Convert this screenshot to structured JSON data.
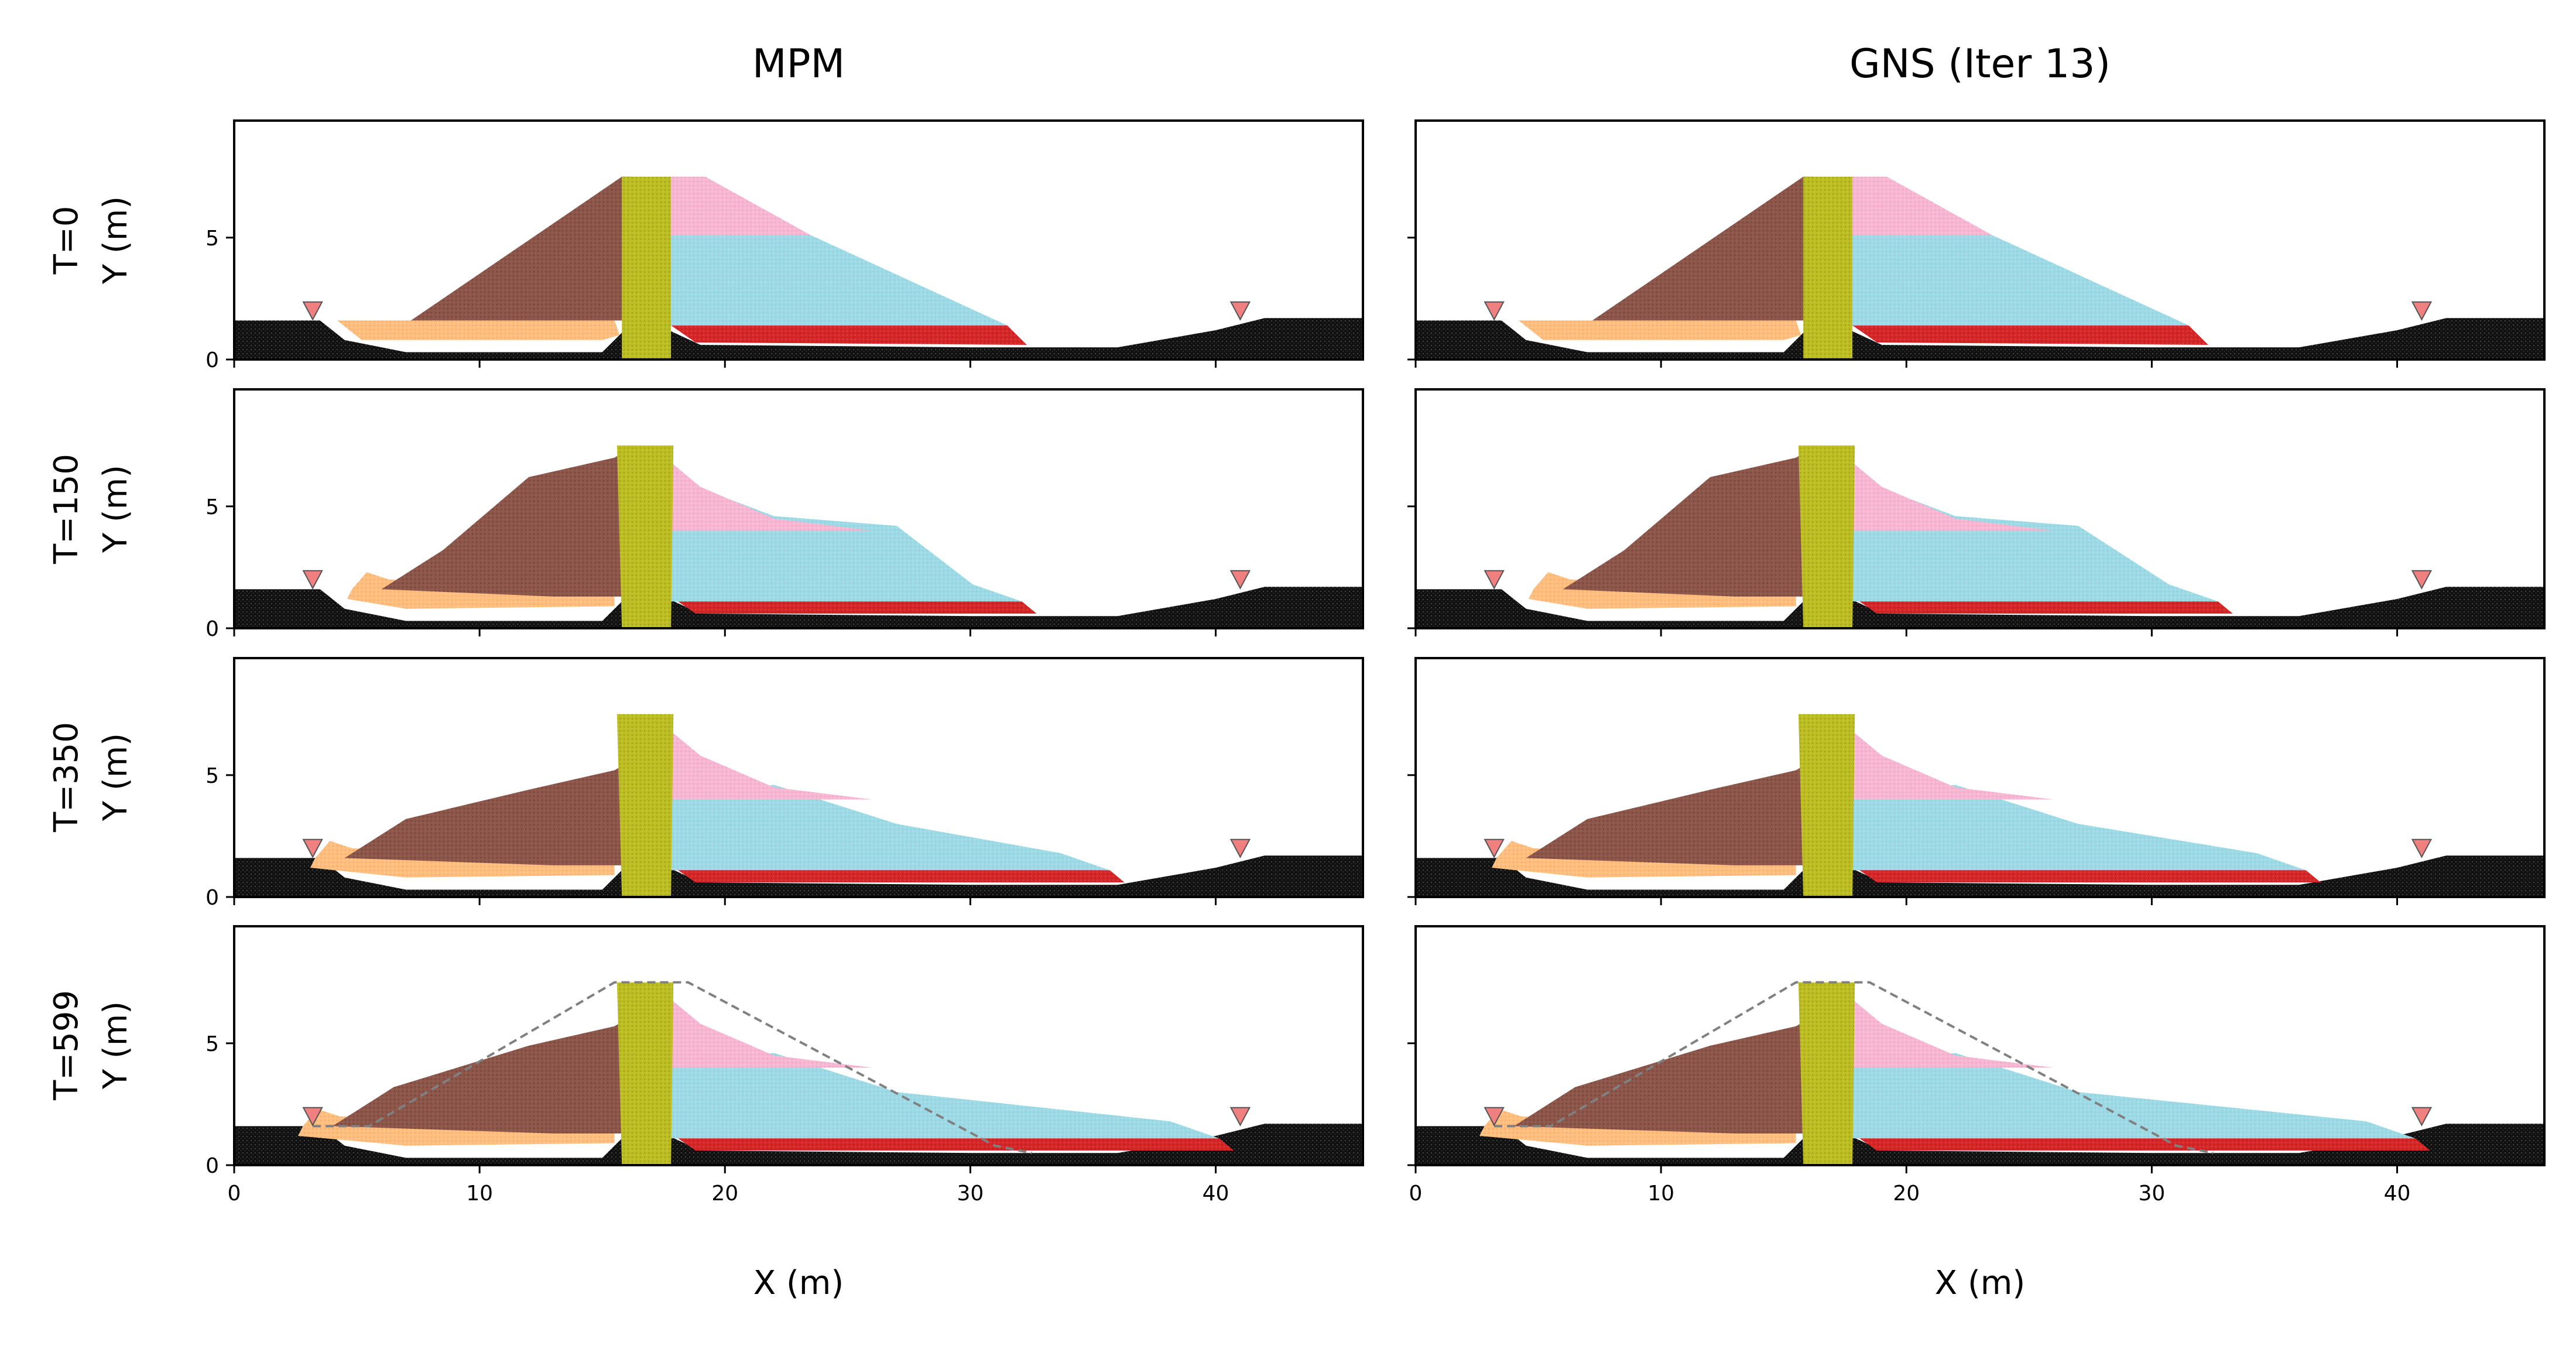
{
  "chart_data": {
    "type": "scatter",
    "columns": [
      {
        "title": "MPM",
        "key": "mpm"
      },
      {
        "title": "GNS (Iter 13)",
        "key": "gns"
      }
    ],
    "rows": [
      {
        "time_label": "T=0",
        "ylabel": "Y (m)",
        "t": 0
      },
      {
        "time_label": "T=150",
        "ylabel": "Y (m)",
        "t": 150
      },
      {
        "time_label": "T=350",
        "ylabel": "Y (m)",
        "t": 350
      },
      {
        "time_label": "T=599",
        "ylabel": "Y (m)",
        "t": 599
      }
    ],
    "xlabel": "X (m)",
    "xlim": [
      0,
      46
    ],
    "ylim": [
      0,
      9.8
    ],
    "xticks": [
      0,
      10,
      20,
      30,
      40
    ],
    "yticks": [
      0,
      5
    ],
    "grid": false,
    "materials": [
      {
        "name": "foundation",
        "color": "#111111"
      },
      {
        "name": "upstream-fill",
        "color": "#ffbe7d"
      },
      {
        "name": "upstream-shell",
        "color": "#8c564b"
      },
      {
        "name": "core",
        "color": "#bcbd22"
      },
      {
        "name": "downstream-top",
        "color": "#f7b6d2"
      },
      {
        "name": "downstream-shell",
        "color": "#9edae5"
      },
      {
        "name": "downstream-base",
        "color": "#d62728"
      }
    ],
    "markers": {
      "symbol": "inverted-triangle",
      "color": "#f08080",
      "x": [
        3.2,
        41
      ],
      "y": 2.0
    },
    "initial_profile": {
      "style": "dashed",
      "color": "#808080",
      "x": [
        3.2,
        5.5,
        15.5,
        18.5,
        31.0,
        32.5
      ],
      "y": [
        1.6,
        1.6,
        7.5,
        7.5,
        0.8,
        0.5
      ],
      "rows": [
        3
      ]
    }
  }
}
